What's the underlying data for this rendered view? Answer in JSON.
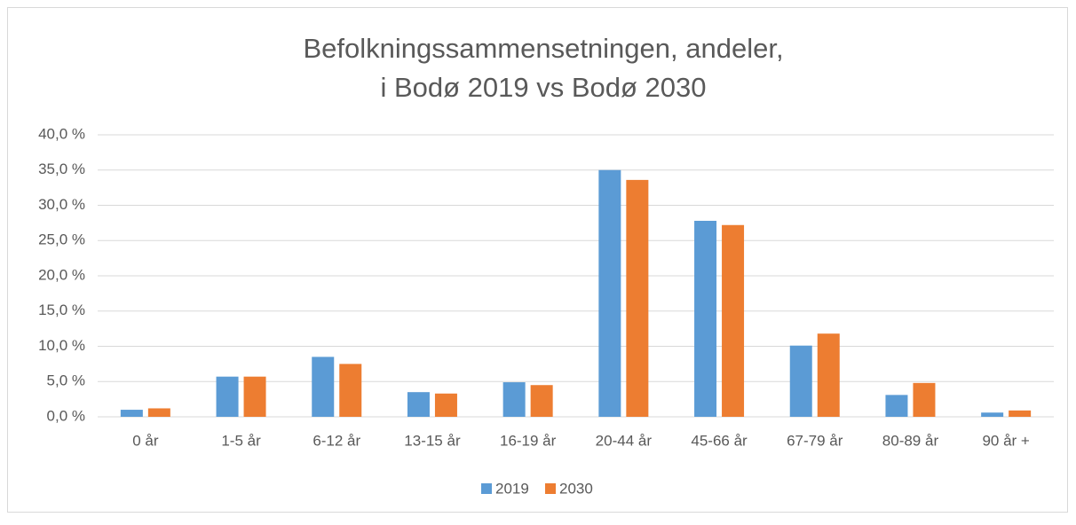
{
  "chart_data": {
    "type": "bar",
    "title": [
      "Befolkningssammensetningen, andeler,",
      "i Bodø 2019 vs Bodø 2030"
    ],
    "categories": [
      "0 år",
      "1-5 år",
      "6-12 år",
      "13-15 år",
      "16-19 år",
      "20-44 år",
      "45-66 år",
      "67-79 år",
      "80-89 år",
      "90 år +"
    ],
    "series": [
      {
        "name": "2019",
        "color": "#5b9bd5",
        "values": [
          1.0,
          5.7,
          8.5,
          3.5,
          4.9,
          35.0,
          27.8,
          10.1,
          3.1,
          0.6
        ]
      },
      {
        "name": "2030",
        "color": "#ed7d31",
        "values": [
          1.2,
          5.7,
          7.5,
          3.3,
          4.5,
          33.6,
          27.2,
          11.8,
          4.8,
          0.9
        ]
      }
    ],
    "ylim": [
      0,
      40
    ],
    "yticks": [
      {
        "value": 0,
        "label": "0,0 %"
      },
      {
        "value": 5,
        "label": "5,0 %"
      },
      {
        "value": 10,
        "label": "10,0 %"
      },
      {
        "value": 15,
        "label": "15,0 %"
      },
      {
        "value": 20,
        "label": "20,0 %"
      },
      {
        "value": 25,
        "label": "25,0 %"
      },
      {
        "value": 30,
        "label": "30,0 %"
      },
      {
        "value": 35,
        "label": "35,0 %"
      },
      {
        "value": 40,
        "label": "40,0 %"
      }
    ],
    "grid": true,
    "legend": "bottom"
  }
}
